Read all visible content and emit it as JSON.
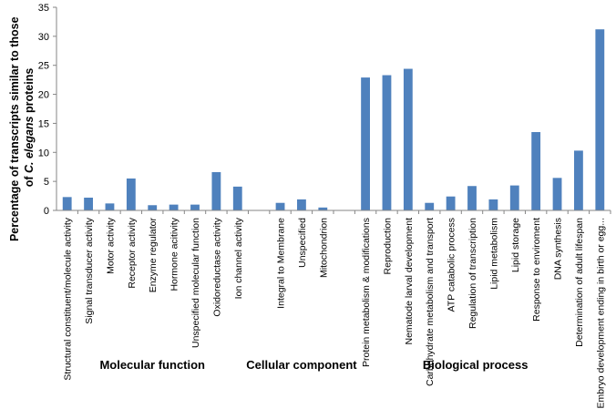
{
  "chart_data": {
    "type": "bar",
    "ylabel_parts": [
      "Percentage of transcripts similar to those",
      "of ",
      "C. elegans",
      " proteins"
    ],
    "ylim": [
      0,
      35
    ],
    "yticks": [
      0,
      5,
      10,
      15,
      20,
      25,
      30,
      35
    ],
    "grid": false,
    "bar_color": "#4F81BD",
    "groups": [
      {
        "name": "Molecular function",
        "categories": [
          "Structural constituent/molecule activity",
          "Signal transducer activity",
          "Motor activity",
          "Receptor activity",
          "Enzyme regulator",
          "Hormone acitivity",
          "Unspecified molecular function",
          "Oxidoreductase activity",
          "Ion channel activity"
        ],
        "values": [
          2.3,
          2.2,
          1.2,
          5.5,
          0.9,
          1.0,
          1.0,
          6.6,
          4.1
        ]
      },
      {
        "name": "Cellular component",
        "categories": [
          "Integral to Membrane",
          "Unspecified",
          "Mitochondrion"
        ],
        "values": [
          1.3,
          1.9,
          0.5
        ]
      },
      {
        "name": "Biological process",
        "categories": [
          "Protein metabolism & modifications",
          "Reproduction",
          "Nematode larval development",
          "Carbohydrate metabolism and transport",
          "ATP catabolic process",
          "Regulation of transcription",
          "Lipid metabolism",
          "Lipid storage",
          "Response to enviroment",
          "DNA synthesis",
          "Determination of adult lifespan",
          "Embryo development ending in birth or egg..."
        ],
        "values": [
          22.9,
          23.3,
          24.4,
          1.3,
          2.4,
          4.2,
          1.9,
          4.3,
          13.5,
          5.6,
          10.3,
          31.2
        ]
      }
    ]
  }
}
